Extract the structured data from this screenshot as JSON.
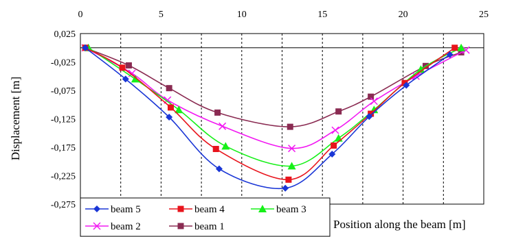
{
  "chart_data": {
    "type": "line",
    "xlabel": "Position along the beam [m]",
    "ylabel": "Displacement [m]",
    "xlim": [
      0,
      25
    ],
    "ylim": [
      -0.275,
      0.025
    ],
    "x_ticks": [
      "0",
      "5",
      "10",
      "15",
      "20",
      "25"
    ],
    "y_ticks": [
      "0,025",
      "-0,025",
      "-0,075",
      "-0,125",
      "-0,175",
      "-0,225",
      "-0,275"
    ],
    "grid": "vertical dashed",
    "legend_position": "bottom-left",
    "series": [
      {
        "name": "beam 5",
        "color": "#1a36d6",
        "marker": "diamond",
        "x": [
          0.3,
          2.8,
          5.5,
          8.6,
          12.7,
          15.6,
          17.9,
          20.2,
          22.9
        ],
        "y": [
          0.0,
          -0.055,
          -0.122,
          -0.213,
          -0.247,
          -0.187,
          -0.121,
          -0.066,
          -0.012
        ]
      },
      {
        "name": "beam 4",
        "color": "#e8141c",
        "marker": "square",
        "x": [
          0.3,
          2.6,
          5.6,
          8.4,
          12.9,
          15.7,
          18.0,
          20.1,
          23.2
        ],
        "y": [
          0.0,
          -0.035,
          -0.105,
          -0.178,
          -0.232,
          -0.172,
          -0.116,
          -0.062,
          0.0
        ]
      },
      {
        "name": "beam 3",
        "color": "#16f018",
        "marker": "triangle",
        "x": [
          0.5,
          3.4,
          6.1,
          9.0,
          13.1,
          16.0,
          18.2,
          21.1,
          23.6
        ],
        "y": [
          0.0,
          -0.055,
          -0.109,
          -0.173,
          -0.208,
          -0.159,
          -0.109,
          -0.038,
          0.0
        ]
      },
      {
        "name": "beam 2",
        "color": "#f218f2",
        "marker": "x",
        "x": [
          0.3,
          3.2,
          5.4,
          8.8,
          13.1,
          15.8,
          18.2,
          20.8,
          23.9
        ],
        "y": [
          0.0,
          -0.045,
          -0.092,
          -0.138,
          -0.177,
          -0.145,
          -0.094,
          -0.05,
          -0.004
        ]
      },
      {
        "name": "beam 1",
        "color": "#8a2b52",
        "marker": "square",
        "x": [
          0.3,
          3.0,
          5.5,
          8.5,
          13.0,
          16.0,
          18.0,
          21.4,
          23.6
        ],
        "y": [
          0.0,
          -0.031,
          -0.071,
          -0.114,
          -0.139,
          -0.112,
          -0.086,
          -0.032,
          -0.008
        ]
      }
    ]
  }
}
